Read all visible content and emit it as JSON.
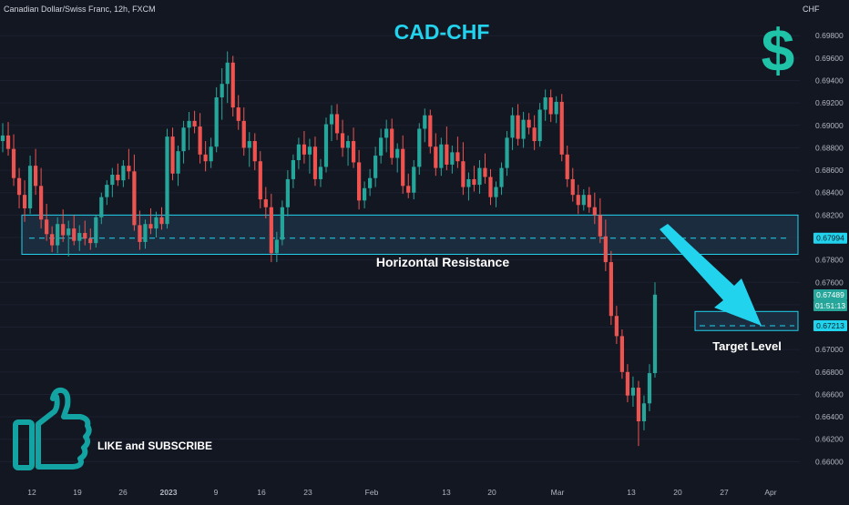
{
  "header": {
    "symbol_line": "Canadian Dollar/Swiss Franc, 12h, FXCM",
    "currency": "CHF"
  },
  "annotations": {
    "title": "CAD-CHF",
    "dollar_sign": "$",
    "resistance_label": "Horizontal Resistance",
    "target_label": "Target Level",
    "like_label": "LIKE and SUBSCRIBE"
  },
  "price_labels": {
    "resistance": "0.67994",
    "current": "0.67489",
    "countdown": "01:51:13",
    "target": "0.67213"
  },
  "colors": {
    "up": "#26a69a",
    "down": "#ef5350",
    "accent": "#22d3ee",
    "zone": "#1e3448",
    "background": "#131722"
  },
  "icons": {
    "dollar": "dollar-sign-icon",
    "like": "thumbs-up-icon"
  },
  "chart_data": {
    "type": "candlestick",
    "ylim": [
      0.6593,
      0.6994
    ],
    "y_ticks": [
      "0.66000",
      "0.66200",
      "0.66400",
      "0.66600",
      "0.66800",
      "0.67000",
      "0.67200",
      "0.67400",
      "0.67600",
      "0.67800",
      "0.68000",
      "0.68200",
      "0.68400",
      "0.68600",
      "0.68800",
      "0.69000",
      "0.69200",
      "0.69400",
      "0.69600",
      "0.69800"
    ],
    "x_ticks": [
      "12",
      "19",
      "26",
      "2023",
      "9",
      "16",
      "23",
      "Feb",
      "13",
      "20",
      "Mar",
      "13",
      "20",
      "27",
      "Apr"
    ],
    "resistance_zone": [
      0.6785,
      0.682
    ],
    "resistance_level": 0.67994,
    "target_zone": [
      0.6717,
      0.6734
    ],
    "target_level": 0.67213,
    "current_price": 0.67489,
    "candles": [
      {
        "o": 0.6886,
        "h": 0.6902,
        "l": 0.6876,
        "c": 0.6891
      },
      {
        "o": 0.6891,
        "h": 0.6903,
        "l": 0.6873,
        "c": 0.6879
      },
      {
        "o": 0.6879,
        "h": 0.6892,
        "l": 0.6846,
        "c": 0.6853
      },
      {
        "o": 0.6853,
        "h": 0.6862,
        "l": 0.6826,
        "c": 0.6838
      },
      {
        "o": 0.6838,
        "h": 0.6851,
        "l": 0.6814,
        "c": 0.6826
      },
      {
        "o": 0.6826,
        "h": 0.6873,
        "l": 0.6821,
        "c": 0.6864
      },
      {
        "o": 0.6864,
        "h": 0.6879,
        "l": 0.6838,
        "c": 0.6846
      },
      {
        "o": 0.6846,
        "h": 0.6862,
        "l": 0.6808,
        "c": 0.6816
      },
      {
        "o": 0.6816,
        "h": 0.683,
        "l": 0.6797,
        "c": 0.6803
      },
      {
        "o": 0.6803,
        "h": 0.681,
        "l": 0.6787,
        "c": 0.6793
      },
      {
        "o": 0.6793,
        "h": 0.6818,
        "l": 0.6786,
        "c": 0.6812
      },
      {
        "o": 0.6812,
        "h": 0.6825,
        "l": 0.6796,
        "c": 0.6802
      },
      {
        "o": 0.6802,
        "h": 0.6815,
        "l": 0.6783,
        "c": 0.6808
      },
      {
        "o": 0.6808,
        "h": 0.682,
        "l": 0.6793,
        "c": 0.6797
      },
      {
        "o": 0.6797,
        "h": 0.6811,
        "l": 0.6788,
        "c": 0.6804
      },
      {
        "o": 0.6804,
        "h": 0.6815,
        "l": 0.6793,
        "c": 0.6799
      },
      {
        "o": 0.6799,
        "h": 0.6808,
        "l": 0.6789,
        "c": 0.6795
      },
      {
        "o": 0.6795,
        "h": 0.682,
        "l": 0.6791,
        "c": 0.6818
      },
      {
        "o": 0.6818,
        "h": 0.684,
        "l": 0.6812,
        "c": 0.6836
      },
      {
        "o": 0.6836,
        "h": 0.6851,
        "l": 0.6829,
        "c": 0.6847
      },
      {
        "o": 0.6847,
        "h": 0.6862,
        "l": 0.6836,
        "c": 0.6856
      },
      {
        "o": 0.6856,
        "h": 0.6866,
        "l": 0.6846,
        "c": 0.6851
      },
      {
        "o": 0.6851,
        "h": 0.6869,
        "l": 0.6845,
        "c": 0.6864
      },
      {
        "o": 0.6864,
        "h": 0.6879,
        "l": 0.6852,
        "c": 0.6859
      },
      {
        "o": 0.6859,
        "h": 0.6874,
        "l": 0.6806,
        "c": 0.6811
      },
      {
        "o": 0.6811,
        "h": 0.6824,
        "l": 0.6789,
        "c": 0.6796
      },
      {
        "o": 0.6796,
        "h": 0.6816,
        "l": 0.679,
        "c": 0.6812
      },
      {
        "o": 0.6812,
        "h": 0.6826,
        "l": 0.6803,
        "c": 0.6808
      },
      {
        "o": 0.6808,
        "h": 0.6823,
        "l": 0.68,
        "c": 0.6818
      },
      {
        "o": 0.6818,
        "h": 0.6827,
        "l": 0.6807,
        "c": 0.6812
      },
      {
        "o": 0.6812,
        "h": 0.6897,
        "l": 0.6808,
        "c": 0.689
      },
      {
        "o": 0.689,
        "h": 0.6898,
        "l": 0.6851,
        "c": 0.6857
      },
      {
        "o": 0.6857,
        "h": 0.6882,
        "l": 0.6846,
        "c": 0.6877
      },
      {
        "o": 0.6877,
        "h": 0.6904,
        "l": 0.6866,
        "c": 0.6898
      },
      {
        "o": 0.6898,
        "h": 0.6912,
        "l": 0.6878,
        "c": 0.6904
      },
      {
        "o": 0.6904,
        "h": 0.6913,
        "l": 0.6893,
        "c": 0.6899
      },
      {
        "o": 0.6899,
        "h": 0.6911,
        "l": 0.6866,
        "c": 0.6874
      },
      {
        "o": 0.6874,
        "h": 0.6886,
        "l": 0.6859,
        "c": 0.6868
      },
      {
        "o": 0.6868,
        "h": 0.6889,
        "l": 0.6862,
        "c": 0.6881
      },
      {
        "o": 0.6881,
        "h": 0.6934,
        "l": 0.6876,
        "c": 0.6925
      },
      {
        "o": 0.6925,
        "h": 0.6951,
        "l": 0.6905,
        "c": 0.6937
      },
      {
        "o": 0.6937,
        "h": 0.6966,
        "l": 0.692,
        "c": 0.6956
      },
      {
        "o": 0.6956,
        "h": 0.6962,
        "l": 0.6908,
        "c": 0.6916
      },
      {
        "o": 0.6916,
        "h": 0.6927,
        "l": 0.6896,
        "c": 0.6904
      },
      {
        "o": 0.6904,
        "h": 0.6916,
        "l": 0.6873,
        "c": 0.688
      },
      {
        "o": 0.688,
        "h": 0.6894,
        "l": 0.6863,
        "c": 0.6886
      },
      {
        "o": 0.6886,
        "h": 0.6893,
        "l": 0.686,
        "c": 0.6868
      },
      {
        "o": 0.6868,
        "h": 0.6877,
        "l": 0.6826,
        "c": 0.6834
      },
      {
        "o": 0.6834,
        "h": 0.6845,
        "l": 0.6817,
        "c": 0.6827
      },
      {
        "o": 0.6827,
        "h": 0.6839,
        "l": 0.6778,
        "c": 0.6786
      },
      {
        "o": 0.6786,
        "h": 0.6805,
        "l": 0.6778,
        "c": 0.6798
      },
      {
        "o": 0.6798,
        "h": 0.6833,
        "l": 0.6793,
        "c": 0.6827
      },
      {
        "o": 0.6827,
        "h": 0.686,
        "l": 0.6819,
        "c": 0.6852
      },
      {
        "o": 0.6852,
        "h": 0.6874,
        "l": 0.6844,
        "c": 0.6869
      },
      {
        "o": 0.6869,
        "h": 0.6889,
        "l": 0.6861,
        "c": 0.6883
      },
      {
        "o": 0.6883,
        "h": 0.6895,
        "l": 0.6866,
        "c": 0.6874
      },
      {
        "o": 0.6874,
        "h": 0.6888,
        "l": 0.6857,
        "c": 0.6881
      },
      {
        "o": 0.6881,
        "h": 0.689,
        "l": 0.6846,
        "c": 0.6852
      },
      {
        "o": 0.6852,
        "h": 0.687,
        "l": 0.6845,
        "c": 0.6863
      },
      {
        "o": 0.6863,
        "h": 0.6907,
        "l": 0.6858,
        "c": 0.6901
      },
      {
        "o": 0.6901,
        "h": 0.6918,
        "l": 0.6886,
        "c": 0.691
      },
      {
        "o": 0.691,
        "h": 0.6919,
        "l": 0.6887,
        "c": 0.6893
      },
      {
        "o": 0.6893,
        "h": 0.6905,
        "l": 0.6872,
        "c": 0.688
      },
      {
        "o": 0.688,
        "h": 0.6891,
        "l": 0.6864,
        "c": 0.6886
      },
      {
        "o": 0.6886,
        "h": 0.6898,
        "l": 0.6862,
        "c": 0.6867
      },
      {
        "o": 0.6867,
        "h": 0.6878,
        "l": 0.6825,
        "c": 0.6833
      },
      {
        "o": 0.6833,
        "h": 0.685,
        "l": 0.6826,
        "c": 0.6844
      },
      {
        "o": 0.6844,
        "h": 0.6861,
        "l": 0.6837,
        "c": 0.6853
      },
      {
        "o": 0.6853,
        "h": 0.6881,
        "l": 0.6845,
        "c": 0.6873
      },
      {
        "o": 0.6873,
        "h": 0.6897,
        "l": 0.6866,
        "c": 0.6889
      },
      {
        "o": 0.6889,
        "h": 0.6905,
        "l": 0.6876,
        "c": 0.6897
      },
      {
        "o": 0.6897,
        "h": 0.6906,
        "l": 0.6865,
        "c": 0.6871
      },
      {
        "o": 0.6871,
        "h": 0.6884,
        "l": 0.6858,
        "c": 0.6879
      },
      {
        "o": 0.6879,
        "h": 0.6891,
        "l": 0.6839,
        "c": 0.6846
      },
      {
        "o": 0.6846,
        "h": 0.6857,
        "l": 0.6835,
        "c": 0.684
      },
      {
        "o": 0.684,
        "h": 0.6869,
        "l": 0.6834,
        "c": 0.6863
      },
      {
        "o": 0.6863,
        "h": 0.6902,
        "l": 0.6856,
        "c": 0.6897
      },
      {
        "o": 0.6897,
        "h": 0.6915,
        "l": 0.6885,
        "c": 0.6909
      },
      {
        "o": 0.6909,
        "h": 0.6914,
        "l": 0.6875,
        "c": 0.6881
      },
      {
        "o": 0.6881,
        "h": 0.6893,
        "l": 0.6855,
        "c": 0.6862
      },
      {
        "o": 0.6862,
        "h": 0.6889,
        "l": 0.6855,
        "c": 0.6883
      },
      {
        "o": 0.6883,
        "h": 0.6899,
        "l": 0.686,
        "c": 0.6865
      },
      {
        "o": 0.6865,
        "h": 0.6882,
        "l": 0.6857,
        "c": 0.6876
      },
      {
        "o": 0.6876,
        "h": 0.689,
        "l": 0.6862,
        "c": 0.6868
      },
      {
        "o": 0.6868,
        "h": 0.6885,
        "l": 0.6838,
        "c": 0.6845
      },
      {
        "o": 0.6845,
        "h": 0.6858,
        "l": 0.6833,
        "c": 0.6852
      },
      {
        "o": 0.6852,
        "h": 0.6864,
        "l": 0.6841,
        "c": 0.6847
      },
      {
        "o": 0.6847,
        "h": 0.6869,
        "l": 0.6839,
        "c": 0.6862
      },
      {
        "o": 0.6862,
        "h": 0.6875,
        "l": 0.6848,
        "c": 0.6854
      },
      {
        "o": 0.6854,
        "h": 0.6861,
        "l": 0.6829,
        "c": 0.6836
      },
      {
        "o": 0.6836,
        "h": 0.685,
        "l": 0.6827,
        "c": 0.6845
      },
      {
        "o": 0.6845,
        "h": 0.6867,
        "l": 0.6838,
        "c": 0.6862
      },
      {
        "o": 0.6862,
        "h": 0.6895,
        "l": 0.6855,
        "c": 0.6889
      },
      {
        "o": 0.6889,
        "h": 0.6916,
        "l": 0.6878,
        "c": 0.6909
      },
      {
        "o": 0.6909,
        "h": 0.6919,
        "l": 0.6882,
        "c": 0.6888
      },
      {
        "o": 0.6888,
        "h": 0.6912,
        "l": 0.688,
        "c": 0.6905
      },
      {
        "o": 0.6905,
        "h": 0.6911,
        "l": 0.6892,
        "c": 0.6898
      },
      {
        "o": 0.6898,
        "h": 0.6909,
        "l": 0.6878,
        "c": 0.6886
      },
      {
        "o": 0.6886,
        "h": 0.692,
        "l": 0.6881,
        "c": 0.6914
      },
      {
        "o": 0.6914,
        "h": 0.6932,
        "l": 0.6904,
        "c": 0.6925
      },
      {
        "o": 0.6925,
        "h": 0.6932,
        "l": 0.6903,
        "c": 0.691
      },
      {
        "o": 0.691,
        "h": 0.6926,
        "l": 0.6902,
        "c": 0.6921
      },
      {
        "o": 0.6921,
        "h": 0.6928,
        "l": 0.6868,
        "c": 0.6874
      },
      {
        "o": 0.6874,
        "h": 0.6882,
        "l": 0.6845,
        "c": 0.6852
      },
      {
        "o": 0.6852,
        "h": 0.6862,
        "l": 0.6832,
        "c": 0.6838
      },
      {
        "o": 0.6838,
        "h": 0.6847,
        "l": 0.6821,
        "c": 0.6829
      },
      {
        "o": 0.6829,
        "h": 0.6843,
        "l": 0.6824,
        "c": 0.6838
      },
      {
        "o": 0.6838,
        "h": 0.6845,
        "l": 0.6822,
        "c": 0.6827
      },
      {
        "o": 0.6827,
        "h": 0.684,
        "l": 0.6812,
        "c": 0.682
      },
      {
        "o": 0.682,
        "h": 0.6835,
        "l": 0.6795,
        "c": 0.6801
      },
      {
        "o": 0.6801,
        "h": 0.6816,
        "l": 0.677,
        "c": 0.6778
      },
      {
        "o": 0.6778,
        "h": 0.6788,
        "l": 0.6722,
        "c": 0.673
      },
      {
        "o": 0.673,
        "h": 0.6739,
        "l": 0.6705,
        "c": 0.6712
      },
      {
        "o": 0.6712,
        "h": 0.6718,
        "l": 0.6674,
        "c": 0.668
      },
      {
        "o": 0.668,
        "h": 0.6687,
        "l": 0.6653,
        "c": 0.6659
      },
      {
        "o": 0.6659,
        "h": 0.6676,
        "l": 0.6649,
        "c": 0.6666
      },
      {
        "o": 0.6666,
        "h": 0.6672,
        "l": 0.6614,
        "c": 0.6636
      },
      {
        "o": 0.6636,
        "h": 0.6659,
        "l": 0.6628,
        "c": 0.6652
      },
      {
        "o": 0.6652,
        "h": 0.6687,
        "l": 0.6645,
        "c": 0.6679
      },
      {
        "o": 0.6679,
        "h": 0.676,
        "l": 0.6675,
        "c": 0.6749
      }
    ]
  }
}
